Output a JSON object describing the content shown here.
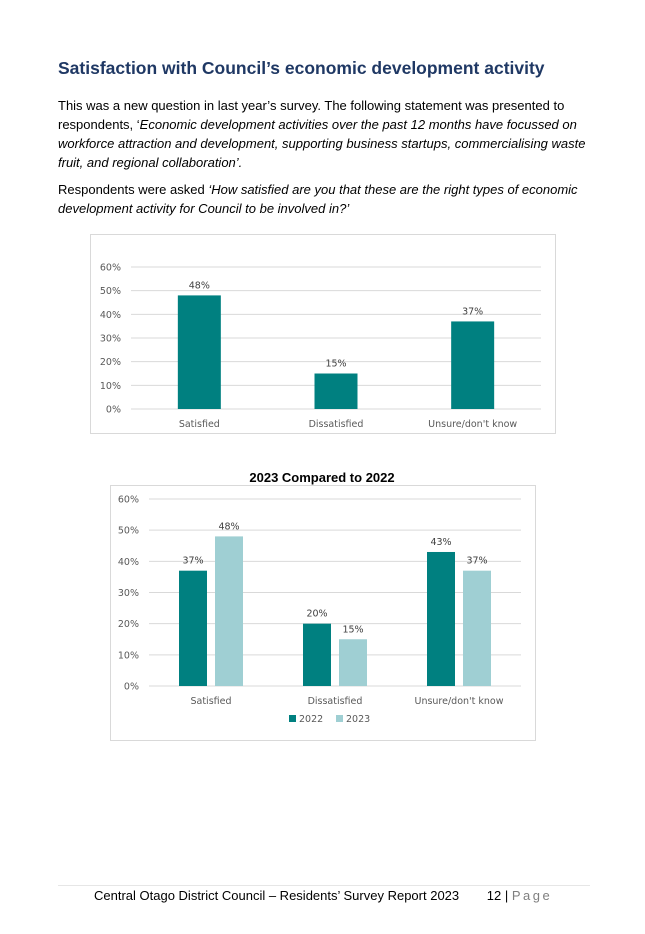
{
  "section": {
    "heading": "Satisfaction with Council’s economic development activity",
    "para1_intro": "This was a new question in last year’s survey. The following statement was presented to respondents, ‘",
    "para1_italic": "Economic development activities over the past 12 months have focussed on workforce attraction and development, supporting business startups, commercialising waste fruit, and regional collaboration’.",
    "para2_intro": "Respondents were asked ",
    "para2_italic": "‘How satisfied are you that these are the right types of economic development activity for Council to be involved in?’"
  },
  "chart_data": [
    {
      "type": "bar",
      "title": "",
      "categories": [
        "Satisfied",
        "Dissatisfied",
        "Unsure/don't know"
      ],
      "values": [
        48,
        15,
        37
      ],
      "data_labels": [
        "48%",
        "15%",
        "37%"
      ],
      "yticks": [
        "0%",
        "10%",
        "20%",
        "30%",
        "40%",
        "50%",
        "60%"
      ],
      "ylim": [
        0,
        60
      ],
      "grid": true,
      "color": "#008080"
    },
    {
      "type": "bar",
      "title": "2023 Compared to 2022",
      "categories": [
        "Satisfied",
        "Dissatisfied",
        "Unsure/don't know"
      ],
      "series": [
        {
          "name": "2022",
          "values": [
            37,
            20,
            43
          ],
          "labels": [
            "37%",
            "20%",
            "43%"
          ],
          "color": "#008080"
        },
        {
          "name": "2023",
          "values": [
            48,
            15,
            37
          ],
          "labels": [
            "48%",
            "15%",
            "37%"
          ],
          "color": "#9fcfd3"
        }
      ],
      "yticks": [
        "0%",
        "10%",
        "20%",
        "30%",
        "40%",
        "50%",
        "60%"
      ],
      "ylim": [
        0,
        60
      ],
      "grid": true,
      "legend": "bottom"
    }
  ],
  "footer": {
    "text": "Central Otago District Council – Residents’ Survey Report 2023",
    "page_number": "12",
    "separator": "|",
    "page_word": "Page"
  }
}
